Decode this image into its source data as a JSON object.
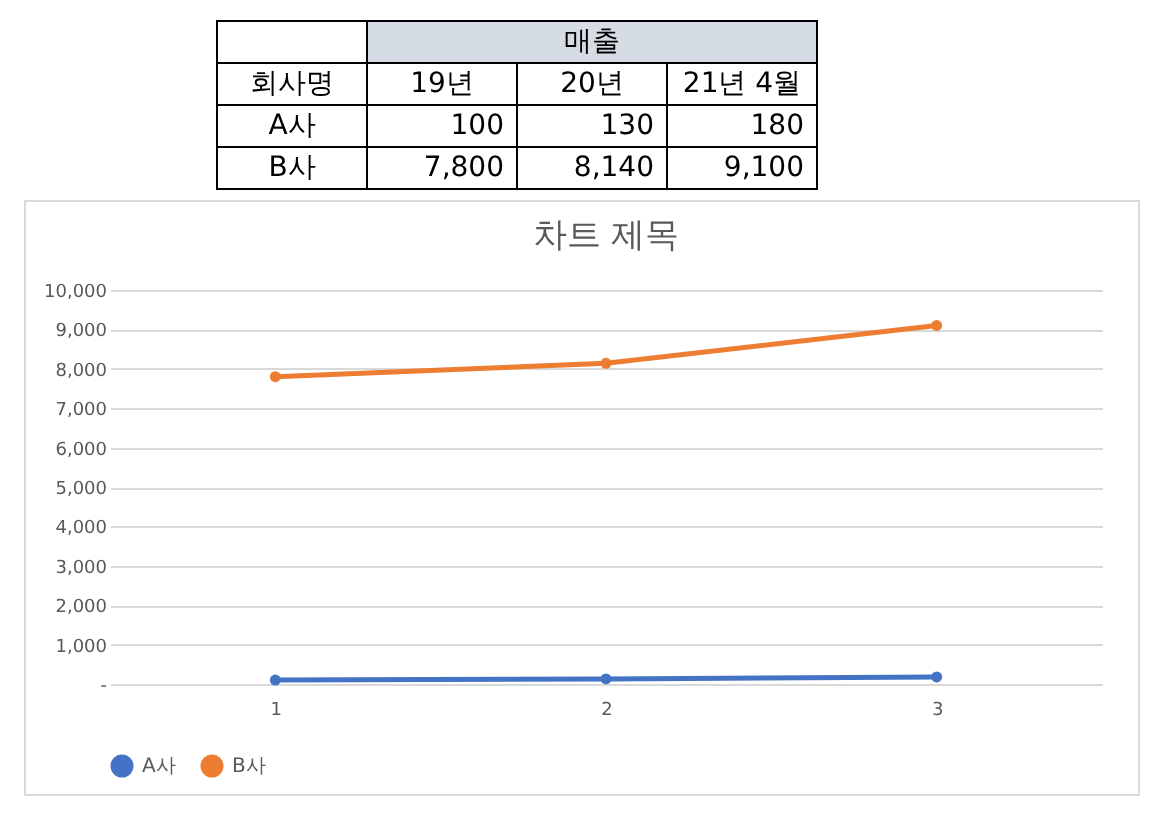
{
  "chart_data": {
    "type": "line",
    "title": "차트 제목",
    "categories": [
      "1",
      "2",
      "3"
    ],
    "series": [
      {
        "name": "A사",
        "color": "#4472c4",
        "values": [
          100,
          130,
          180
        ]
      },
      {
        "name": "B사",
        "color": "#ed7d31",
        "values": [
          7800,
          8140,
          9100
        ]
      }
    ],
    "ylim": [
      0,
      10000
    ],
    "yticks": [
      {
        "value": 0,
        "label": "-"
      },
      {
        "value": 1000,
        "label": "1,000"
      },
      {
        "value": 2000,
        "label": "2,000"
      },
      {
        "value": 3000,
        "label": "3,000"
      },
      {
        "value": 4000,
        "label": "4,000"
      },
      {
        "value": 5000,
        "label": "5,000"
      },
      {
        "value": 6000,
        "label": "6,000"
      },
      {
        "value": 7000,
        "label": "7,000"
      },
      {
        "value": 8000,
        "label": "8,000"
      },
      {
        "value": 9000,
        "label": "9,000"
      },
      {
        "value": 10000,
        "label": "10,000"
      }
    ],
    "annotations": [
      "매출",
      "회사명",
      "19년",
      "20년",
      "21년 4월",
      "100",
      "130",
      "180",
      "7,800",
      "8,140",
      "9,100"
    ],
    "grid": "y",
    "legend": "bottom",
    "marker": "circle",
    "line_style": "solid"
  }
}
